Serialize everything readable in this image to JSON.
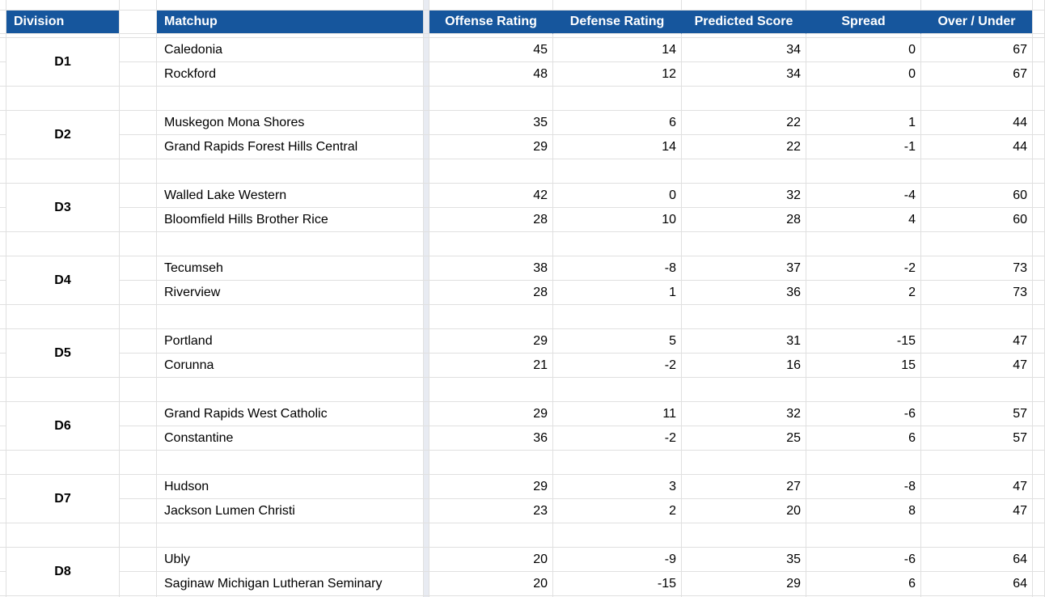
{
  "sheet": {
    "headers": {
      "division": "Division",
      "matchup": "Matchup",
      "offense": "Offense Rating",
      "defense": "Defense Rating",
      "predicted": "Predicted Score",
      "spread": "Spread",
      "over_under": "Over / Under"
    },
    "groups": [
      {
        "division": "D1",
        "teams": [
          {
            "name": "Caledonia",
            "offense": 45,
            "defense": 14,
            "predicted": 34,
            "spread": 0,
            "over_under": 67
          },
          {
            "name": "Rockford",
            "offense": 48,
            "defense": 12,
            "predicted": 34,
            "spread": 0,
            "over_under": 67
          }
        ]
      },
      {
        "division": "D2",
        "teams": [
          {
            "name": "Muskegon Mona Shores",
            "offense": 35,
            "defense": 6,
            "predicted": 22,
            "spread": 1,
            "over_under": 44
          },
          {
            "name": "Grand Rapids Forest Hills Central",
            "offense": 29,
            "defense": 14,
            "predicted": 22,
            "spread": -1,
            "over_under": 44
          }
        ]
      },
      {
        "division": "D3",
        "teams": [
          {
            "name": "Walled Lake Western",
            "offense": 42,
            "defense": 0,
            "predicted": 32,
            "spread": -4,
            "over_under": 60
          },
          {
            "name": "Bloomfield Hills Brother Rice",
            "offense": 28,
            "defense": 10,
            "predicted": 28,
            "spread": 4,
            "over_under": 60
          }
        ]
      },
      {
        "division": "D4",
        "teams": [
          {
            "name": "Tecumseh",
            "offense": 38,
            "defense": -8,
            "predicted": 37,
            "spread": -2,
            "over_under": 73
          },
          {
            "name": "Riverview",
            "offense": 28,
            "defense": 1,
            "predicted": 36,
            "spread": 2,
            "over_under": 73
          }
        ]
      },
      {
        "division": "D5",
        "teams": [
          {
            "name": "Portland",
            "offense": 29,
            "defense": 5,
            "predicted": 31,
            "spread": -15,
            "over_under": 47
          },
          {
            "name": "Corunna",
            "offense": 21,
            "defense": -2,
            "predicted": 16,
            "spread": 15,
            "over_under": 47
          }
        ]
      },
      {
        "division": "D6",
        "teams": [
          {
            "name": "Grand Rapids West Catholic",
            "offense": 29,
            "defense": 11,
            "predicted": 32,
            "spread": -6,
            "over_under": 57
          },
          {
            "name": "Constantine",
            "offense": 36,
            "defense": -2,
            "predicted": 25,
            "spread": 6,
            "over_under": 57
          }
        ]
      },
      {
        "division": "D7",
        "teams": [
          {
            "name": "Hudson",
            "offense": 29,
            "defense": 3,
            "predicted": 27,
            "spread": -8,
            "over_under": 47
          },
          {
            "name": "Jackson Lumen Christi",
            "offense": 23,
            "defense": 2,
            "predicted": 20,
            "spread": 8,
            "over_under": 47
          }
        ]
      },
      {
        "division": "D8",
        "teams": [
          {
            "name": "Ubly",
            "offense": 20,
            "defense": -9,
            "predicted": 35,
            "spread": -6,
            "over_under": 64
          },
          {
            "name": "Saginaw Michigan Lutheran Seminary",
            "offense": 20,
            "defense": -15,
            "predicted": 29,
            "spread": 6,
            "over_under": 64
          }
        ]
      }
    ],
    "colors": {
      "header_bg": "#16569D",
      "header_text": "#FFFFFF",
      "cell_text": "#000000",
      "gridline": "#E0E0E0",
      "pane_divider": "#E8EBF2"
    }
  }
}
